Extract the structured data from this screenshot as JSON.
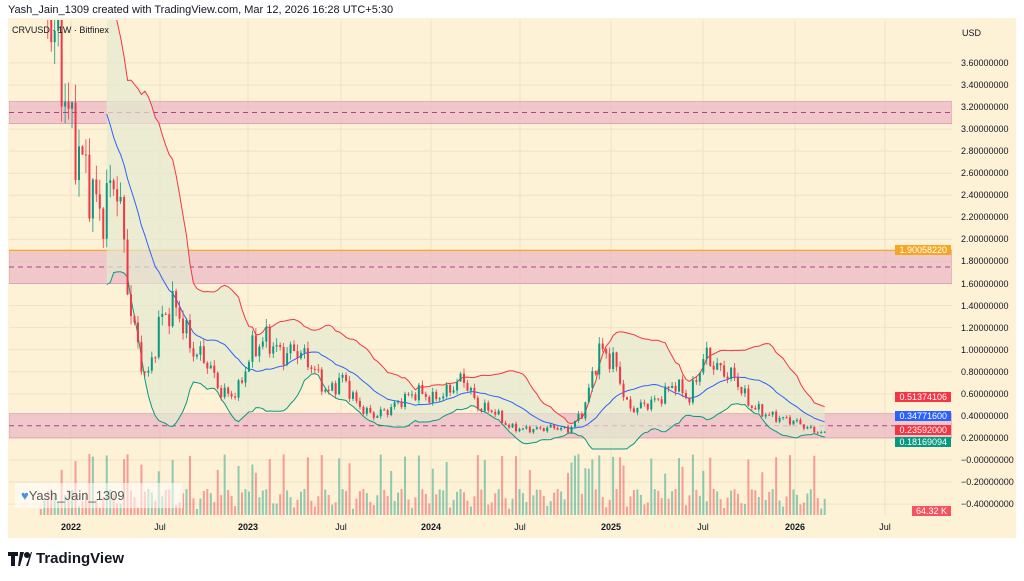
{
  "caption": "Yash_Jain_1309 created with TradingView.com, Mar 12, 2026 16:28 UTC+5:30",
  "legend": "CRVUSD · 1W · Bitfinex",
  "currency": "USD",
  "watermark": "Yash_Jain_1309",
  "watermark_icon": "blue-heart-icon",
  "brand": "TradingView",
  "colors": {
    "up": "#089981",
    "down": "#f23645",
    "zone": "#e8a5c0",
    "upper_band": "#f23645",
    "basis": "#2962ff",
    "lower_band": "#089981",
    "level": "#f5a623"
  },
  "chart_data": {
    "type": "candlestick",
    "symbol": "CRVUSD",
    "interval": "1W",
    "exchange": "Bitfinex",
    "price_ticks": [
      "3.60000000",
      "3.40000000",
      "3.20000000",
      "3.00000000",
      "2.80000000",
      "2.60000000",
      "2.40000000",
      "2.20000000",
      "2.00000000",
      "1.80000000",
      "1.60000000",
      "1.40000000",
      "1.20000000",
      "1.00000000",
      "0.80000000",
      "0.60000000",
      "0.40000000",
      "0.20000000",
      "−0.00000000",
      "−0.20000000",
      "−0.40000000"
    ],
    "time_ticks": [
      {
        "label": "2022",
        "year": true
      },
      {
        "label": "Jul"
      },
      {
        "label": "2023",
        "year": true
      },
      {
        "label": "Jul"
      },
      {
        "label": "2024",
        "year": true
      },
      {
        "label": "Jul"
      },
      {
        "label": "2025",
        "year": true
      },
      {
        "label": "Jul"
      },
      {
        "label": "2026",
        "year": true
      },
      {
        "label": "Jul"
      }
    ],
    "monthly_closes_from_2021_11": [
      4.5,
      3.8,
      3.0,
      2.6,
      2.2,
      2.6,
      1.3,
      0.7,
      1.3,
      1.4,
      1.0,
      0.9,
      0.6,
      0.6,
      1.0,
      1.1,
      0.95,
      1.0,
      0.85,
      0.6,
      0.75,
      0.5,
      0.4,
      0.45,
      0.55,
      0.62,
      0.55,
      0.62,
      0.75,
      0.48,
      0.45,
      0.3,
      0.28,
      0.28,
      0.3,
      0.27,
      0.45,
      1.0,
      0.9,
      0.45,
      0.5,
      0.55,
      0.7,
      0.55,
      0.95,
      0.82,
      0.75,
      0.5,
      0.42,
      0.38,
      0.35,
      0.28,
      0.236
    ],
    "zones": [
      [
        3.05,
        3.25
      ],
      [
        1.6,
        1.9
      ],
      [
        0.2,
        0.42
      ]
    ],
    "dashed_levels": [
      3.15,
      1.75,
      0.31
    ],
    "horizontal_level": 1.9005822,
    "indicator": "Bollinger Bands (20, 2)",
    "price_tags": [
      {
        "value": "1.90058220",
        "price": 1.9005822,
        "color": "#f5a623"
      },
      {
        "value": "0.51374106",
        "price": 0.57,
        "color": "#f23645"
      },
      {
        "value": "0.34771600",
        "price": 0.4,
        "color": "#2962ff"
      },
      {
        "value": "0.23592000",
        "price": 0.275,
        "color": "#f23645"
      },
      {
        "value": "0.18169094",
        "price": 0.165,
        "color": "#089981"
      }
    ],
    "volume_tag": "64.32 K"
  }
}
